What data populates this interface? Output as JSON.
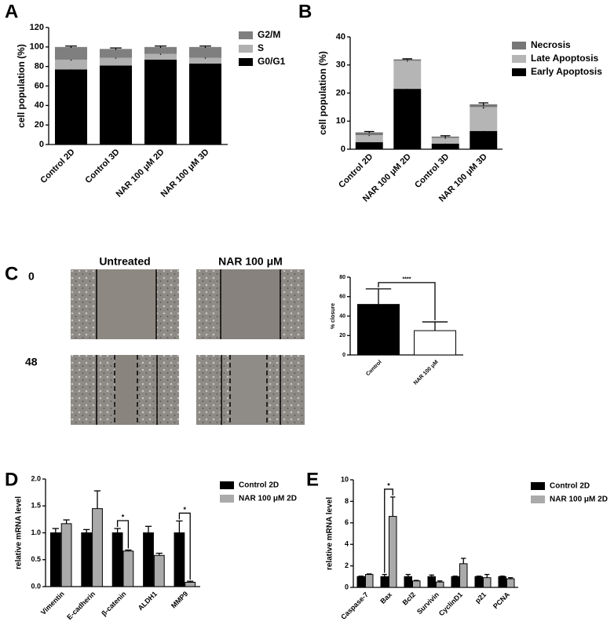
{
  "figure": {
    "panel_labels": [
      "A",
      "B",
      "C",
      "D",
      "E"
    ],
    "scratch": {
      "column_titles": [
        "Untreated",
        "NAR 100 μM"
      ],
      "time_labels": [
        "0",
        "48"
      ]
    }
  },
  "chart_data": [
    {
      "type": "stacked_bar",
      "ylabel": "cell population (%)",
      "categories": [
        "Control 2D",
        "Control 3D",
        "NAR 100 μM 2D",
        "NAR 100 μM 3D"
      ],
      "series": [
        {
          "name": "G0/G1",
          "color": "#000000",
          "values": [
            77,
            81,
            87,
            83
          ],
          "errors": [
            1,
            1,
            1,
            1
          ]
        },
        {
          "name": "S",
          "color": "#b0b0b0",
          "values": [
            10,
            8,
            6,
            6
          ],
          "errors": [
            1,
            1,
            1,
            1
          ]
        },
        {
          "name": "G2/M",
          "color": "#7f7f7f",
          "values": [
            13,
            9,
            7,
            11
          ],
          "errors": [
            1,
            1,
            1,
            1
          ]
        }
      ],
      "legend_order": [
        "G2/M",
        "S",
        "G0/G1"
      ],
      "ylim": [
        0,
        120
      ],
      "yticks": [
        0,
        20,
        40,
        60,
        80,
        100,
        120
      ]
    },
    {
      "type": "stacked_bar",
      "ylabel": "cell population (%)",
      "categories": [
        "Control 2D",
        "NAR 100 μM 2D",
        "Control 3D",
        "NAR 100 μM 3D"
      ],
      "series": [
        {
          "name": "Early Apoptosis",
          "color": "#000000",
          "values": [
            2.5,
            21.5,
            2,
            6.5
          ],
          "errors": [
            0.5,
            0.3,
            0.3,
            0.5
          ]
        },
        {
          "name": "Late Apoptosis",
          "color": "#b5b5b5",
          "values": [
            2.5,
            10,
            2,
            8.5
          ],
          "errors": [
            0.3,
            0.3,
            0.3,
            0.5
          ]
        },
        {
          "name": "Necrosis",
          "color": "#777777",
          "values": [
            1,
            0.5,
            0.5,
            1
          ],
          "errors": [
            0.3,
            0.2,
            0.3,
            0.5
          ]
        }
      ],
      "legend_order": [
        "Necrosis",
        "Late Apoptosis",
        "Early Apoptosis"
      ],
      "ylim": [
        0,
        40
      ],
      "yticks": [
        0,
        10,
        20,
        30,
        40
      ]
    },
    {
      "type": "bar",
      "ylabel": "% closure",
      "categories": [
        "Control",
        "NAR 100 μM"
      ],
      "series": [
        {
          "name": "% closure",
          "colors": [
            "#000000",
            "#ffffff"
          ],
          "values": [
            52,
            25
          ],
          "errors": [
            16,
            9
          ]
        }
      ],
      "annotations": [
        "****"
      ],
      "ylim": [
        0,
        80
      ],
      "yticks": [
        0,
        20,
        40,
        60,
        80
      ]
    },
    {
      "type": "bar",
      "ylabel": "relative mRNA level",
      "categories": [
        "Vimentin",
        "E-cadherin",
        "β-catenin",
        "ALDH1",
        "MMP9"
      ],
      "series": [
        {
          "name": "Control 2D",
          "color": "#000000",
          "values": [
            1,
            1,
            1,
            1,
            1
          ],
          "errors": [
            0.08,
            0.06,
            0.08,
            0.12,
            0.22
          ]
        },
        {
          "name": "NAR 100 μM 2D",
          "color": "#aaaaaa",
          "values": [
            1.17,
            1.45,
            0.66,
            0.58,
            0.08
          ],
          "errors": [
            0.07,
            0.33,
            0.02,
            0.04,
            0.02
          ]
        }
      ],
      "annotations": [
        "*",
        "*"
      ],
      "ylim": [
        0,
        2
      ],
      "yticks": [
        {
          "value": 0,
          "label": "0.0"
        },
        0.5,
        {
          "value": 1,
          "label": "1.0"
        },
        1.5,
        {
          "value": 2,
          "label": "2.0"
        }
      ]
    },
    {
      "type": "bar",
      "ylabel": "relative mRNA level",
      "categories": [
        "Caspase-7",
        "Bax",
        "Bcl2",
        "Survivin",
        "CyclinD1",
        "p21",
        "PCNA"
      ],
      "series": [
        {
          "name": "Control 2D",
          "color": "#000000",
          "values": [
            1,
            1,
            1,
            1,
            1,
            1,
            1
          ],
          "errors": [
            0.05,
            0.2,
            0.2,
            0.15,
            0.05,
            0.05,
            0.05
          ]
        },
        {
          "name": "NAR 100 μM 2D",
          "color": "#aaaaaa",
          "values": [
            1.2,
            6.6,
            0.6,
            0.5,
            2.2,
            0.9,
            0.8
          ],
          "errors": [
            0.05,
            1.8,
            0.05,
            0.1,
            0.5,
            0.3,
            0.1
          ]
        }
      ],
      "annotations": [
        "*"
      ],
      "ylim": [
        0,
        10
      ],
      "yticks": [
        0,
        2,
        4,
        6,
        8,
        10
      ]
    }
  ]
}
